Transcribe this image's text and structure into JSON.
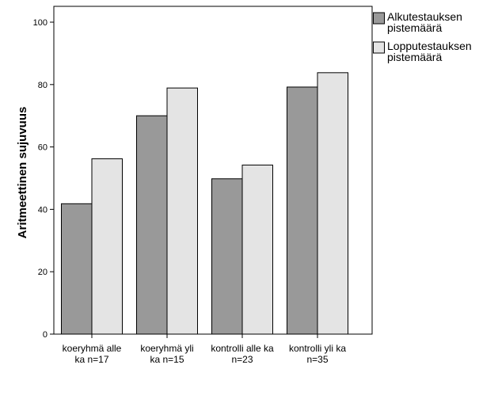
{
  "chart_data": {
    "type": "bar",
    "categories": [
      [
        "koeryhmä alle",
        "ka n=17"
      ],
      [
        "koeryhmä yli",
        "ka n=15"
      ],
      [
        "kontrolli alle ka",
        "n=23"
      ],
      [
        "kontrolli yli ka",
        "n=35"
      ]
    ],
    "series": [
      {
        "name": [
          "Alkutestauksen",
          "pistemäärä"
        ],
        "values": [
          41.8,
          70.0,
          49.8,
          79.2
        ],
        "color": "#999999"
      },
      {
        "name": [
          "Lopputestauksen",
          "pistemäärä"
        ],
        "values": [
          56.2,
          78.9,
          54.2,
          83.8
        ],
        "color": "#e4e4e4"
      }
    ],
    "title": "",
    "xlabel": "",
    "ylabel": "Aritmeettinen sujuvuus",
    "ylim": [
      0,
      100
    ],
    "yticks": [
      0,
      20,
      40,
      60,
      80,
      100
    ],
    "grid": false,
    "legend": "top-right"
  }
}
